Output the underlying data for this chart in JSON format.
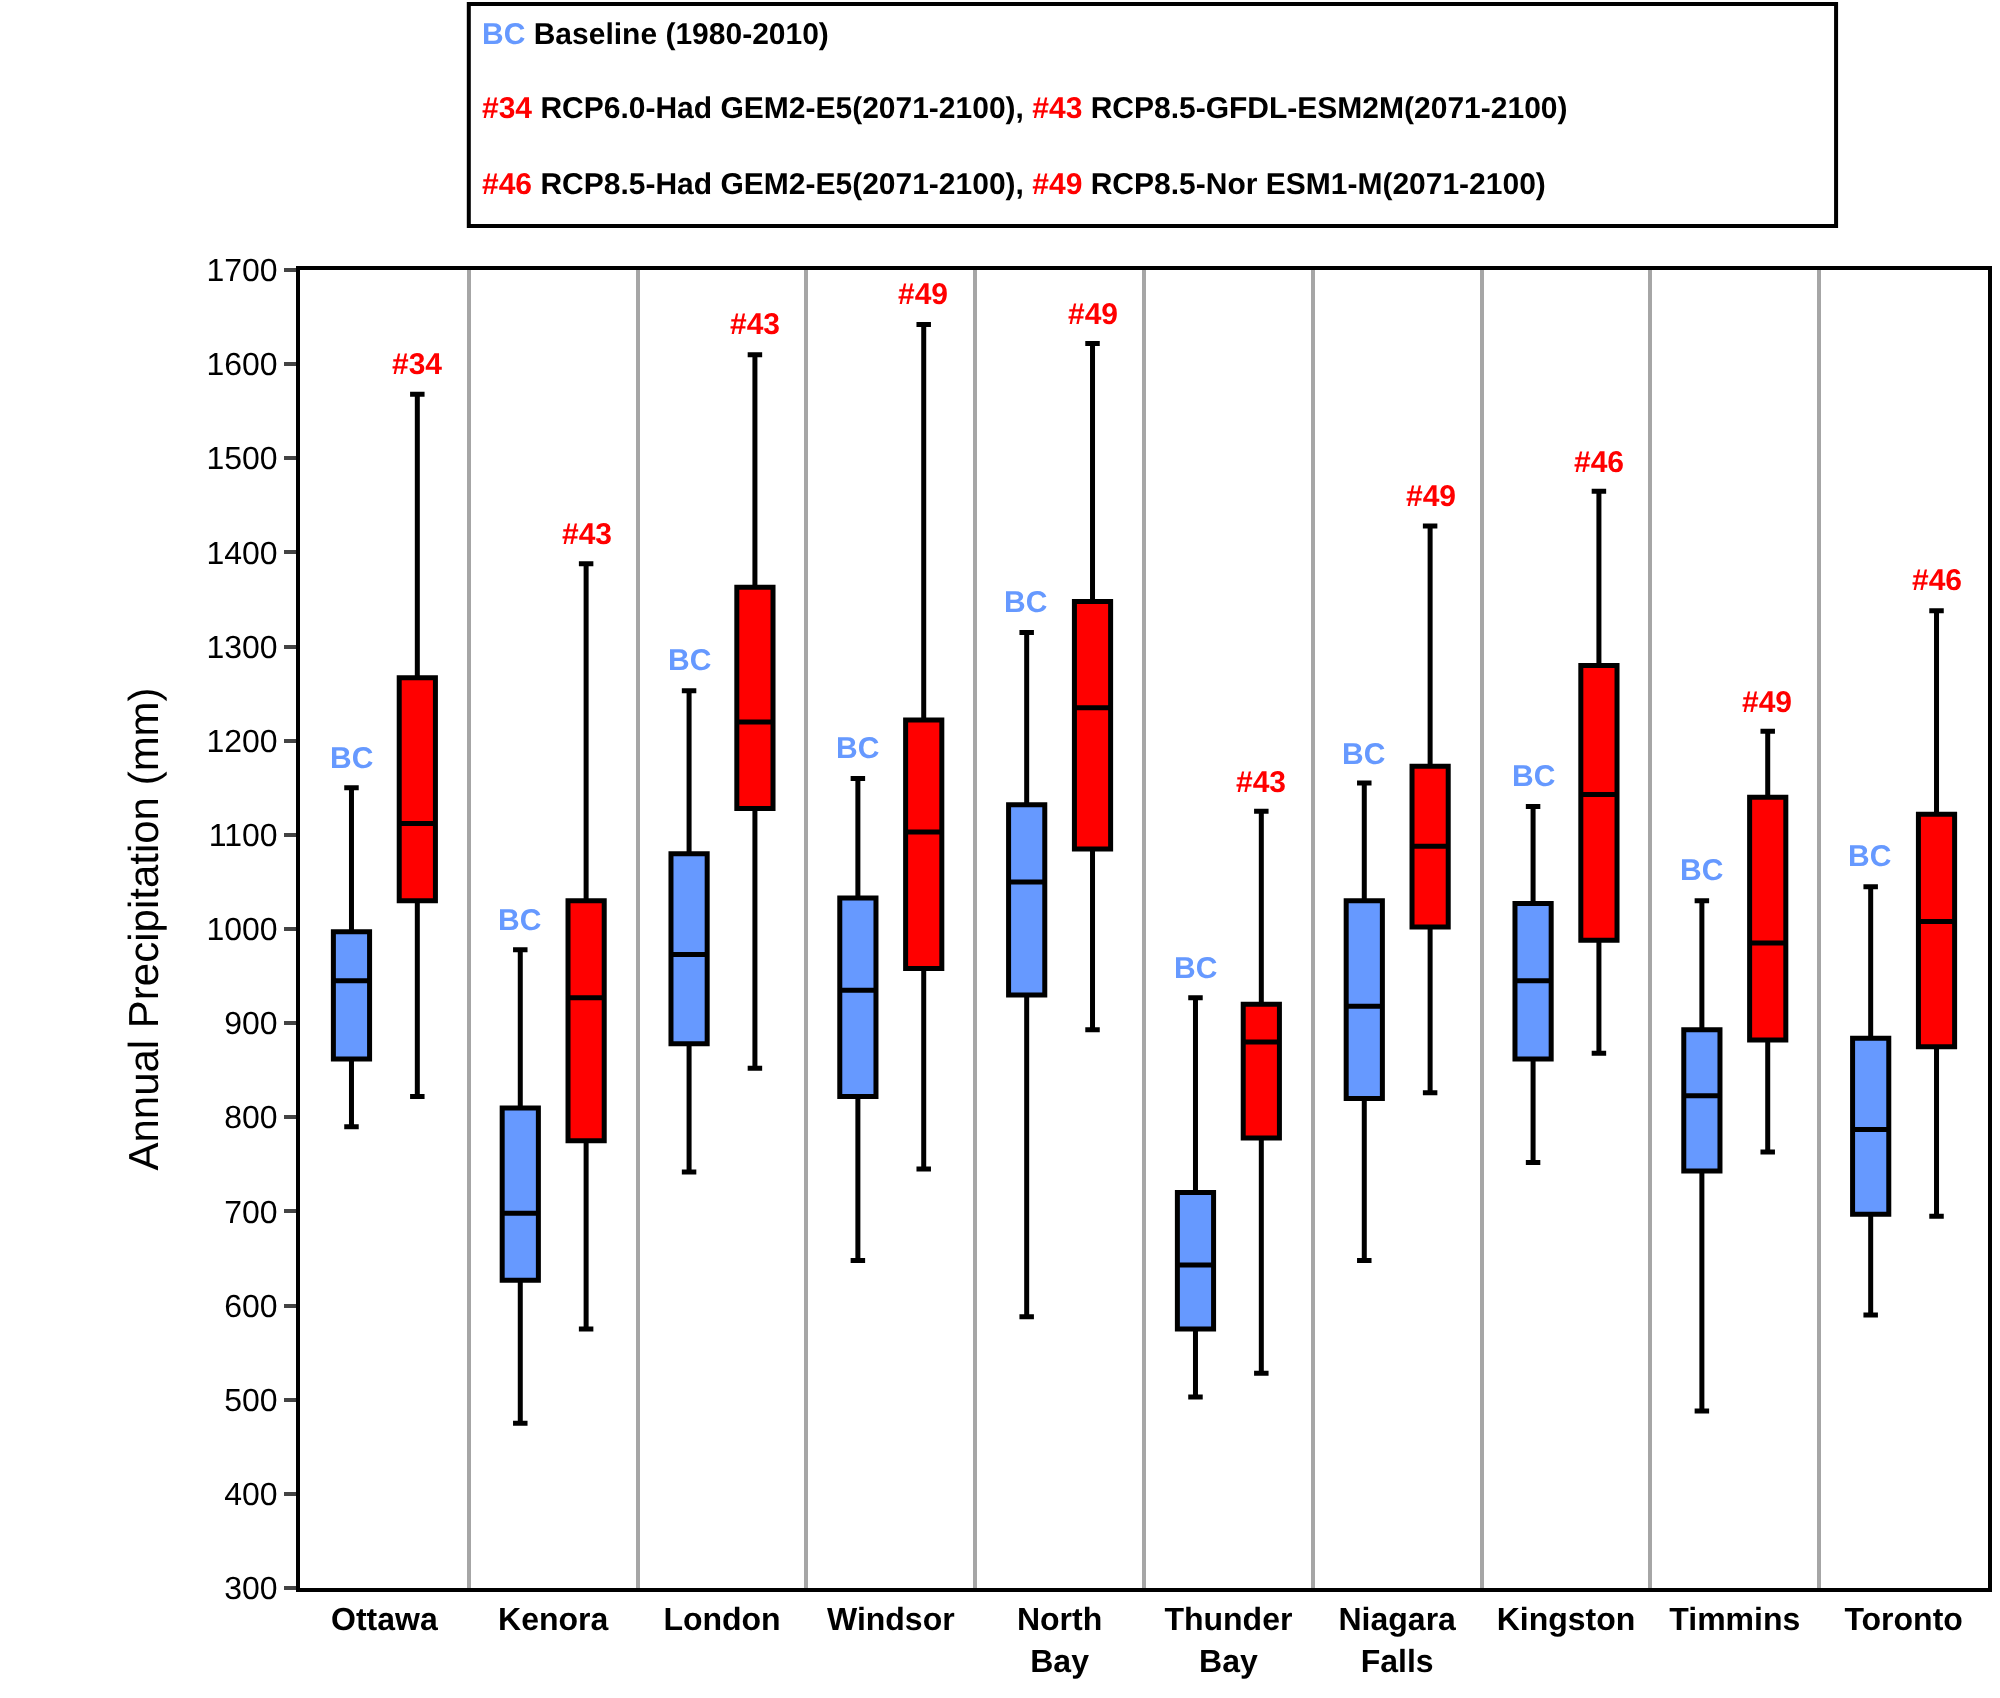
{
  "chart_data": {
    "type": "box",
    "ylabel": "Annual Precipitation (mm)",
    "categories": [
      "Ottawa",
      "Kenora",
      "London",
      "Windsor",
      "North Bay",
      "Thunder Bay",
      "Niagara Falls",
      "Kingston",
      "Timmins",
      "Toronto"
    ],
    "ylim": [
      300,
      1700
    ],
    "yticks": [
      300,
      400,
      500,
      600,
      700,
      800,
      900,
      1000,
      1100,
      1200,
      1300,
      1400,
      1500,
      1600,
      1700
    ],
    "grid": "x",
    "annotations": [
      "BC Baseline (1980-2010)",
      "#34 RCP6.0-Had GEM2-E5(2071-2100), #43 RCP8.5-GFDL-ESM2M(2071-2100)",
      "#46 RCP8.5-Had GEM2-E5(2071-2100), #49 RCP8.5-Nor ESM1-M(2071-2100)"
    ],
    "series": [
      {
        "color": "#6699ff",
        "value_labels": [
          "BC",
          "BC",
          "BC",
          "BC",
          "BC",
          "BC",
          "BC",
          "BC",
          "BC",
          "BC"
        ],
        "boxes": [
          {
            "low": 790,
            "q1": 862,
            "median": 945,
            "q3": 997,
            "high": 1150
          },
          {
            "low": 475,
            "q1": 627,
            "median": 698,
            "q3": 810,
            "high": 978
          },
          {
            "low": 742,
            "q1": 878,
            "median": 973,
            "q3": 1080,
            "high": 1253
          },
          {
            "low": 648,
            "q1": 822,
            "median": 935,
            "q3": 1033,
            "high": 1160
          },
          {
            "low": 588,
            "q1": 930,
            "median": 1050,
            "q3": 1132,
            "high": 1315
          },
          {
            "low": 503,
            "q1": 575,
            "median": 643,
            "q3": 720,
            "high": 927
          },
          {
            "low": 648,
            "q1": 820,
            "median": 918,
            "q3": 1030,
            "high": 1155
          },
          {
            "low": 752,
            "q1": 862,
            "median": 945,
            "q3": 1027,
            "high": 1130
          },
          {
            "low": 488,
            "q1": 743,
            "median": 823,
            "q3": 893,
            "high": 1030
          },
          {
            "low": 590,
            "q1": 697,
            "median": 787,
            "q3": 884,
            "high": 1045
          }
        ]
      },
      {
        "color": "#ff0000",
        "value_labels": [
          "#34",
          "#43",
          "#43",
          "#49",
          "#49",
          "#43",
          "#49",
          "#46",
          "#49",
          "#46"
        ],
        "boxes": [
          {
            "low": 822,
            "q1": 1030,
            "median": 1112,
            "q3": 1267,
            "high": 1568
          },
          {
            "low": 575,
            "q1": 775,
            "median": 927,
            "q3": 1030,
            "high": 1388
          },
          {
            "low": 852,
            "q1": 1128,
            "median": 1220,
            "q3": 1363,
            "high": 1610
          },
          {
            "low": 745,
            "q1": 958,
            "median": 1103,
            "q3": 1222,
            "high": 1642
          },
          {
            "low": 893,
            "q1": 1085,
            "median": 1235,
            "q3": 1348,
            "high": 1622
          },
          {
            "low": 528,
            "q1": 778,
            "median": 880,
            "q3": 920,
            "high": 1125
          },
          {
            "low": 826,
            "q1": 1002,
            "median": 1088,
            "q3": 1173,
            "high": 1428
          },
          {
            "low": 868,
            "q1": 988,
            "median": 1143,
            "q3": 1280,
            "high": 1465
          },
          {
            "low": 763,
            "q1": 882,
            "median": 985,
            "q3": 1140,
            "high": 1210
          },
          {
            "low": 695,
            "q1": 875,
            "median": 1008,
            "q3": 1122,
            "high": 1338
          }
        ]
      }
    ]
  }
}
